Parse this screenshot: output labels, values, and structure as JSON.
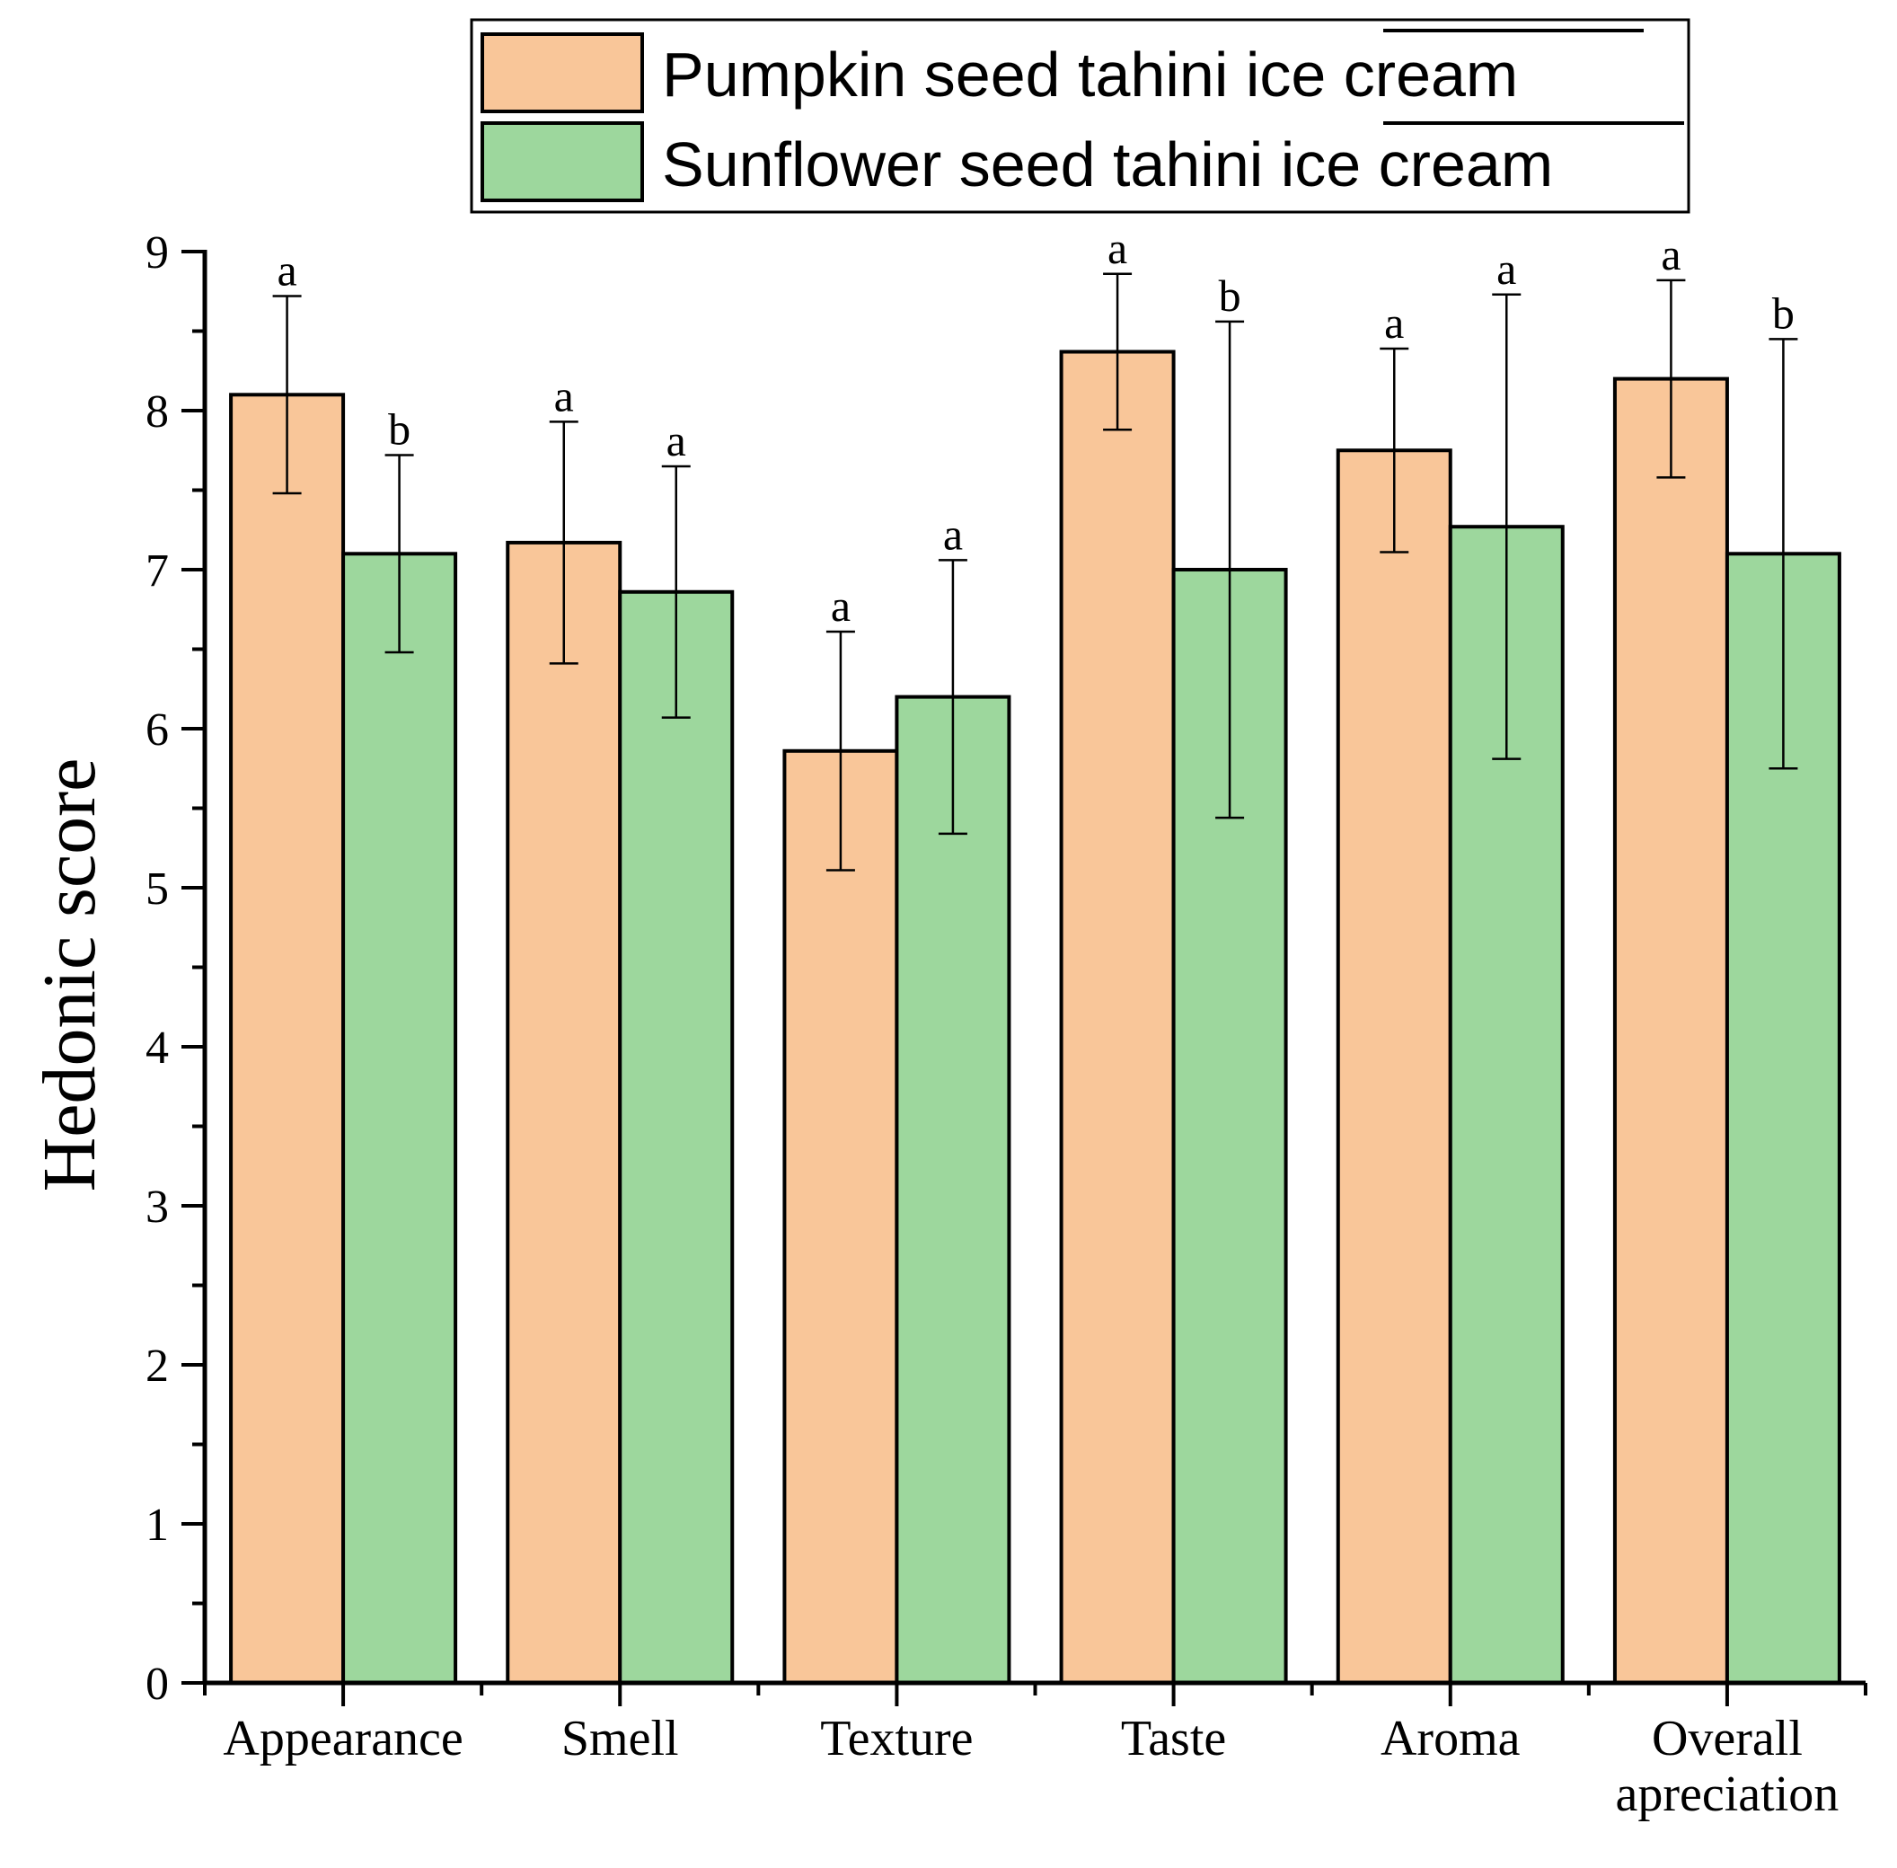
{
  "chart_data": {
    "type": "bar",
    "title": "",
    "xlabel": "",
    "ylabel": "Hedonic score",
    "ylim": [
      0,
      9
    ],
    "yticks": [
      0,
      1,
      2,
      3,
      4,
      5,
      6,
      7,
      8,
      9
    ],
    "categories": [
      "Appearance",
      "Smell",
      "Texture",
      "Taste",
      "Aroma",
      "Overall apreciation"
    ],
    "series": [
      {
        "name": "Pumpkin seed tahini ice cream",
        "color": "#f9c699",
        "values": [
          8.1,
          7.17,
          5.86,
          8.37,
          7.75,
          8.2
        ],
        "errors": [
          0.62,
          0.76,
          0.75,
          0.49,
          0.64,
          0.62
        ],
        "labels": [
          "a",
          "a",
          "a",
          "a",
          "a",
          "a"
        ]
      },
      {
        "name": "Sunflower seed tahini ice cream",
        "color": "#9dd79d",
        "values": [
          7.1,
          6.86,
          6.2,
          7.0,
          7.27,
          7.1
        ],
        "errors": [
          0.62,
          0.79,
          0.86,
          1.56,
          1.46,
          1.35
        ],
        "labels": [
          "b",
          "a",
          "a",
          "b",
          "a",
          "b"
        ]
      }
    ],
    "legend_position": "top"
  }
}
